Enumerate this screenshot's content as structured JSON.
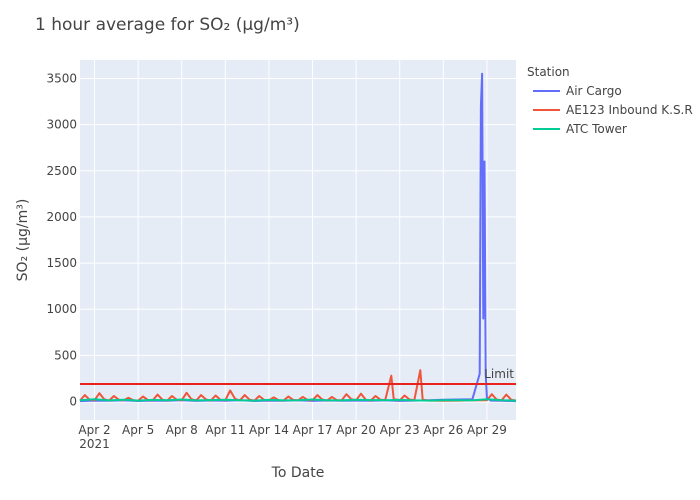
{
  "chart_data": {
    "type": "line",
    "title": "1 hour average for SO₂ (µg/m³)",
    "xlabel": "To Date",
    "ylabel": "SO₂ (µg/m³)",
    "x_range": [
      "2021-04-01",
      "2021-05-01"
    ],
    "ylim": [
      -200,
      3700
    ],
    "x_ticks": [
      {
        "date": "2021-04-02",
        "label": "Apr 2",
        "sublabel": "2021"
      },
      {
        "date": "2021-04-05",
        "label": "Apr 5"
      },
      {
        "date": "2021-04-08",
        "label": "Apr 8"
      },
      {
        "date": "2021-04-11",
        "label": "Apr 11"
      },
      {
        "date": "2021-04-14",
        "label": "Apr 14"
      },
      {
        "date": "2021-04-17",
        "label": "Apr 17"
      },
      {
        "date": "2021-04-20",
        "label": "Apr 20"
      },
      {
        "date": "2021-04-23",
        "label": "Apr 23"
      },
      {
        "date": "2021-04-26",
        "label": "Apr 26"
      },
      {
        "date": "2021-04-29",
        "label": "Apr 29"
      }
    ],
    "y_ticks": [
      0,
      500,
      1000,
      1500,
      2000,
      2500,
      3000,
      3500
    ],
    "grid": true,
    "legend": {
      "title": "Station",
      "position": "right"
    },
    "limit": {
      "value": 190,
      "label": "Limit",
      "color": "#e8231e"
    },
    "series": [
      {
        "name": "Air Cargo",
        "color": "#636efa",
        "x": [
          "2021-04-01 00:00",
          "2021-04-02 00:00",
          "2021-04-03 00:00",
          "2021-04-04 00:00",
          "2021-04-05 00:00",
          "2021-04-06 00:00",
          "2021-04-07 00:00",
          "2021-04-08 00:00",
          "2021-04-09 00:00",
          "2021-04-10 00:00",
          "2021-04-11 00:00",
          "2021-04-12 00:00",
          "2021-04-13 00:00",
          "2021-04-14 00:00",
          "2021-04-15 00:00",
          "2021-04-16 00:00",
          "2021-04-17 00:00",
          "2021-04-18 00:00",
          "2021-04-19 00:00",
          "2021-04-20 00:00",
          "2021-04-21 00:00",
          "2021-04-22 00:00",
          "2021-04-23 00:00",
          "2021-04-24 00:00",
          "2021-04-25 00:00",
          "2021-04-26 00:00",
          "2021-04-27 00:00",
          "2021-04-28 00:00",
          "2021-04-28 12:00",
          "2021-04-28 14:00",
          "2021-04-28 16:00",
          "2021-04-28 18:00",
          "2021-04-28 20:00",
          "2021-04-28 22:00",
          "2021-04-29 00:00",
          "2021-04-29 06:00",
          "2021-04-30 00:00",
          "2021-05-01 00:00"
        ],
        "y": [
          5,
          10,
          8,
          12,
          6,
          10,
          9,
          14,
          7,
          11,
          8,
          13,
          6,
          10,
          9,
          12,
          7,
          11,
          8,
          10,
          9,
          12,
          7,
          10,
          14,
          20,
          22,
          25,
          300,
          3200,
          3550,
          900,
          2600,
          300,
          40,
          10,
          8,
          5
        ]
      },
      {
        "name": "AE123 Inbound K.S.R",
        "color": "#ef553b",
        "x": [
          "2021-04-01 00:00",
          "2021-04-01 08:00",
          "2021-04-01 16:00",
          "2021-04-02 00:00",
          "2021-04-02 08:00",
          "2021-04-02 16:00",
          "2021-04-03 00:00",
          "2021-04-03 08:00",
          "2021-04-03 16:00",
          "2021-04-04 00:00",
          "2021-04-04 08:00",
          "2021-04-04 16:00",
          "2021-04-05 00:00",
          "2021-04-05 08:00",
          "2021-04-05 16:00",
          "2021-04-06 00:00",
          "2021-04-06 08:00",
          "2021-04-06 16:00",
          "2021-04-07 00:00",
          "2021-04-07 08:00",
          "2021-04-07 16:00",
          "2021-04-08 00:00",
          "2021-04-08 08:00",
          "2021-04-08 16:00",
          "2021-04-09 00:00",
          "2021-04-09 08:00",
          "2021-04-09 16:00",
          "2021-04-10 00:00",
          "2021-04-10 08:00",
          "2021-04-10 16:00",
          "2021-04-11 00:00",
          "2021-04-11 08:00",
          "2021-04-11 16:00",
          "2021-04-12 00:00",
          "2021-04-12 08:00",
          "2021-04-12 16:00",
          "2021-04-13 00:00",
          "2021-04-13 08:00",
          "2021-04-13 16:00",
          "2021-04-14 00:00",
          "2021-04-14 08:00",
          "2021-04-14 16:00",
          "2021-04-15 00:00",
          "2021-04-15 08:00",
          "2021-04-15 16:00",
          "2021-04-16 00:00",
          "2021-04-16 08:00",
          "2021-04-16 16:00",
          "2021-04-17 00:00",
          "2021-04-17 08:00",
          "2021-04-17 16:00",
          "2021-04-18 00:00",
          "2021-04-18 08:00",
          "2021-04-18 16:00",
          "2021-04-19 00:00",
          "2021-04-19 08:00",
          "2021-04-19 16:00",
          "2021-04-20 00:00",
          "2021-04-20 08:00",
          "2021-04-20 16:00",
          "2021-04-21 00:00",
          "2021-04-21 08:00",
          "2021-04-21 16:00",
          "2021-04-22 00:00",
          "2021-04-22 10:00",
          "2021-04-22 14:00",
          "2021-04-23 00:00",
          "2021-04-23 08:00",
          "2021-04-23 16:00",
          "2021-04-24 00:00",
          "2021-04-24 10:00",
          "2021-04-24 14:00",
          "2021-04-25 00:00",
          "2021-04-26 00:00",
          "2021-04-27 00:00",
          "2021-04-28 00:00",
          "2021-04-29 00:00",
          "2021-04-29 08:00",
          "2021-04-29 16:00",
          "2021-04-30 00:00",
          "2021-04-30 08:00",
          "2021-04-30 16:00",
          "2021-05-01 00:00"
        ],
        "y": [
          10,
          70,
          20,
          15,
          90,
          25,
          10,
          60,
          20,
          12,
          40,
          15,
          10,
          55,
          18,
          12,
          75,
          20,
          10,
          60,
          18,
          14,
          95,
          25,
          12,
          70,
          22,
          10,
          65,
          18,
          14,
          120,
          30,
          12,
          70,
          20,
          10,
          60,
          18,
          12,
          45,
          15,
          10,
          55,
          18,
          12,
          50,
          16,
          14,
          70,
          22,
          10,
          50,
          16,
          12,
          80,
          25,
          14,
          85,
          20,
          10,
          60,
          20,
          16,
          280,
          30,
          12,
          65,
          22,
          14,
          340,
          20,
          10,
          8,
          10,
          12,
          14,
          80,
          22,
          12,
          75,
          20,
          10
        ]
      },
      {
        "name": "ATC Tower",
        "color": "#00cc96",
        "x": [
          "2021-04-01 00:00",
          "2021-04-02 00:00",
          "2021-04-03 00:00",
          "2021-04-04 00:00",
          "2021-04-05 00:00",
          "2021-04-06 00:00",
          "2021-04-07 00:00",
          "2021-04-08 00:00",
          "2021-04-09 00:00",
          "2021-04-10 00:00",
          "2021-04-11 00:00",
          "2021-04-12 00:00",
          "2021-04-13 00:00",
          "2021-04-14 00:00",
          "2021-04-15 00:00",
          "2021-04-16 00:00",
          "2021-04-17 00:00",
          "2021-04-18 00:00",
          "2021-04-19 00:00",
          "2021-04-20 00:00",
          "2021-04-21 00:00",
          "2021-04-22 00:00",
          "2021-04-23 00:00",
          "2021-04-24 00:00",
          "2021-04-25 00:00",
          "2021-04-26 00:00",
          "2021-04-27 00:00",
          "2021-04-28 00:00",
          "2021-04-29 00:00",
          "2021-04-30 00:00",
          "2021-05-01 00:00"
        ],
        "y": [
          15,
          25,
          12,
          20,
          10,
          18,
          14,
          22,
          12,
          16,
          20,
          14,
          10,
          18,
          12,
          15,
          22,
          14,
          12,
          20,
          16,
          14,
          18,
          12,
          10,
          15,
          14,
          12,
          25,
          15,
          10
        ]
      }
    ]
  }
}
